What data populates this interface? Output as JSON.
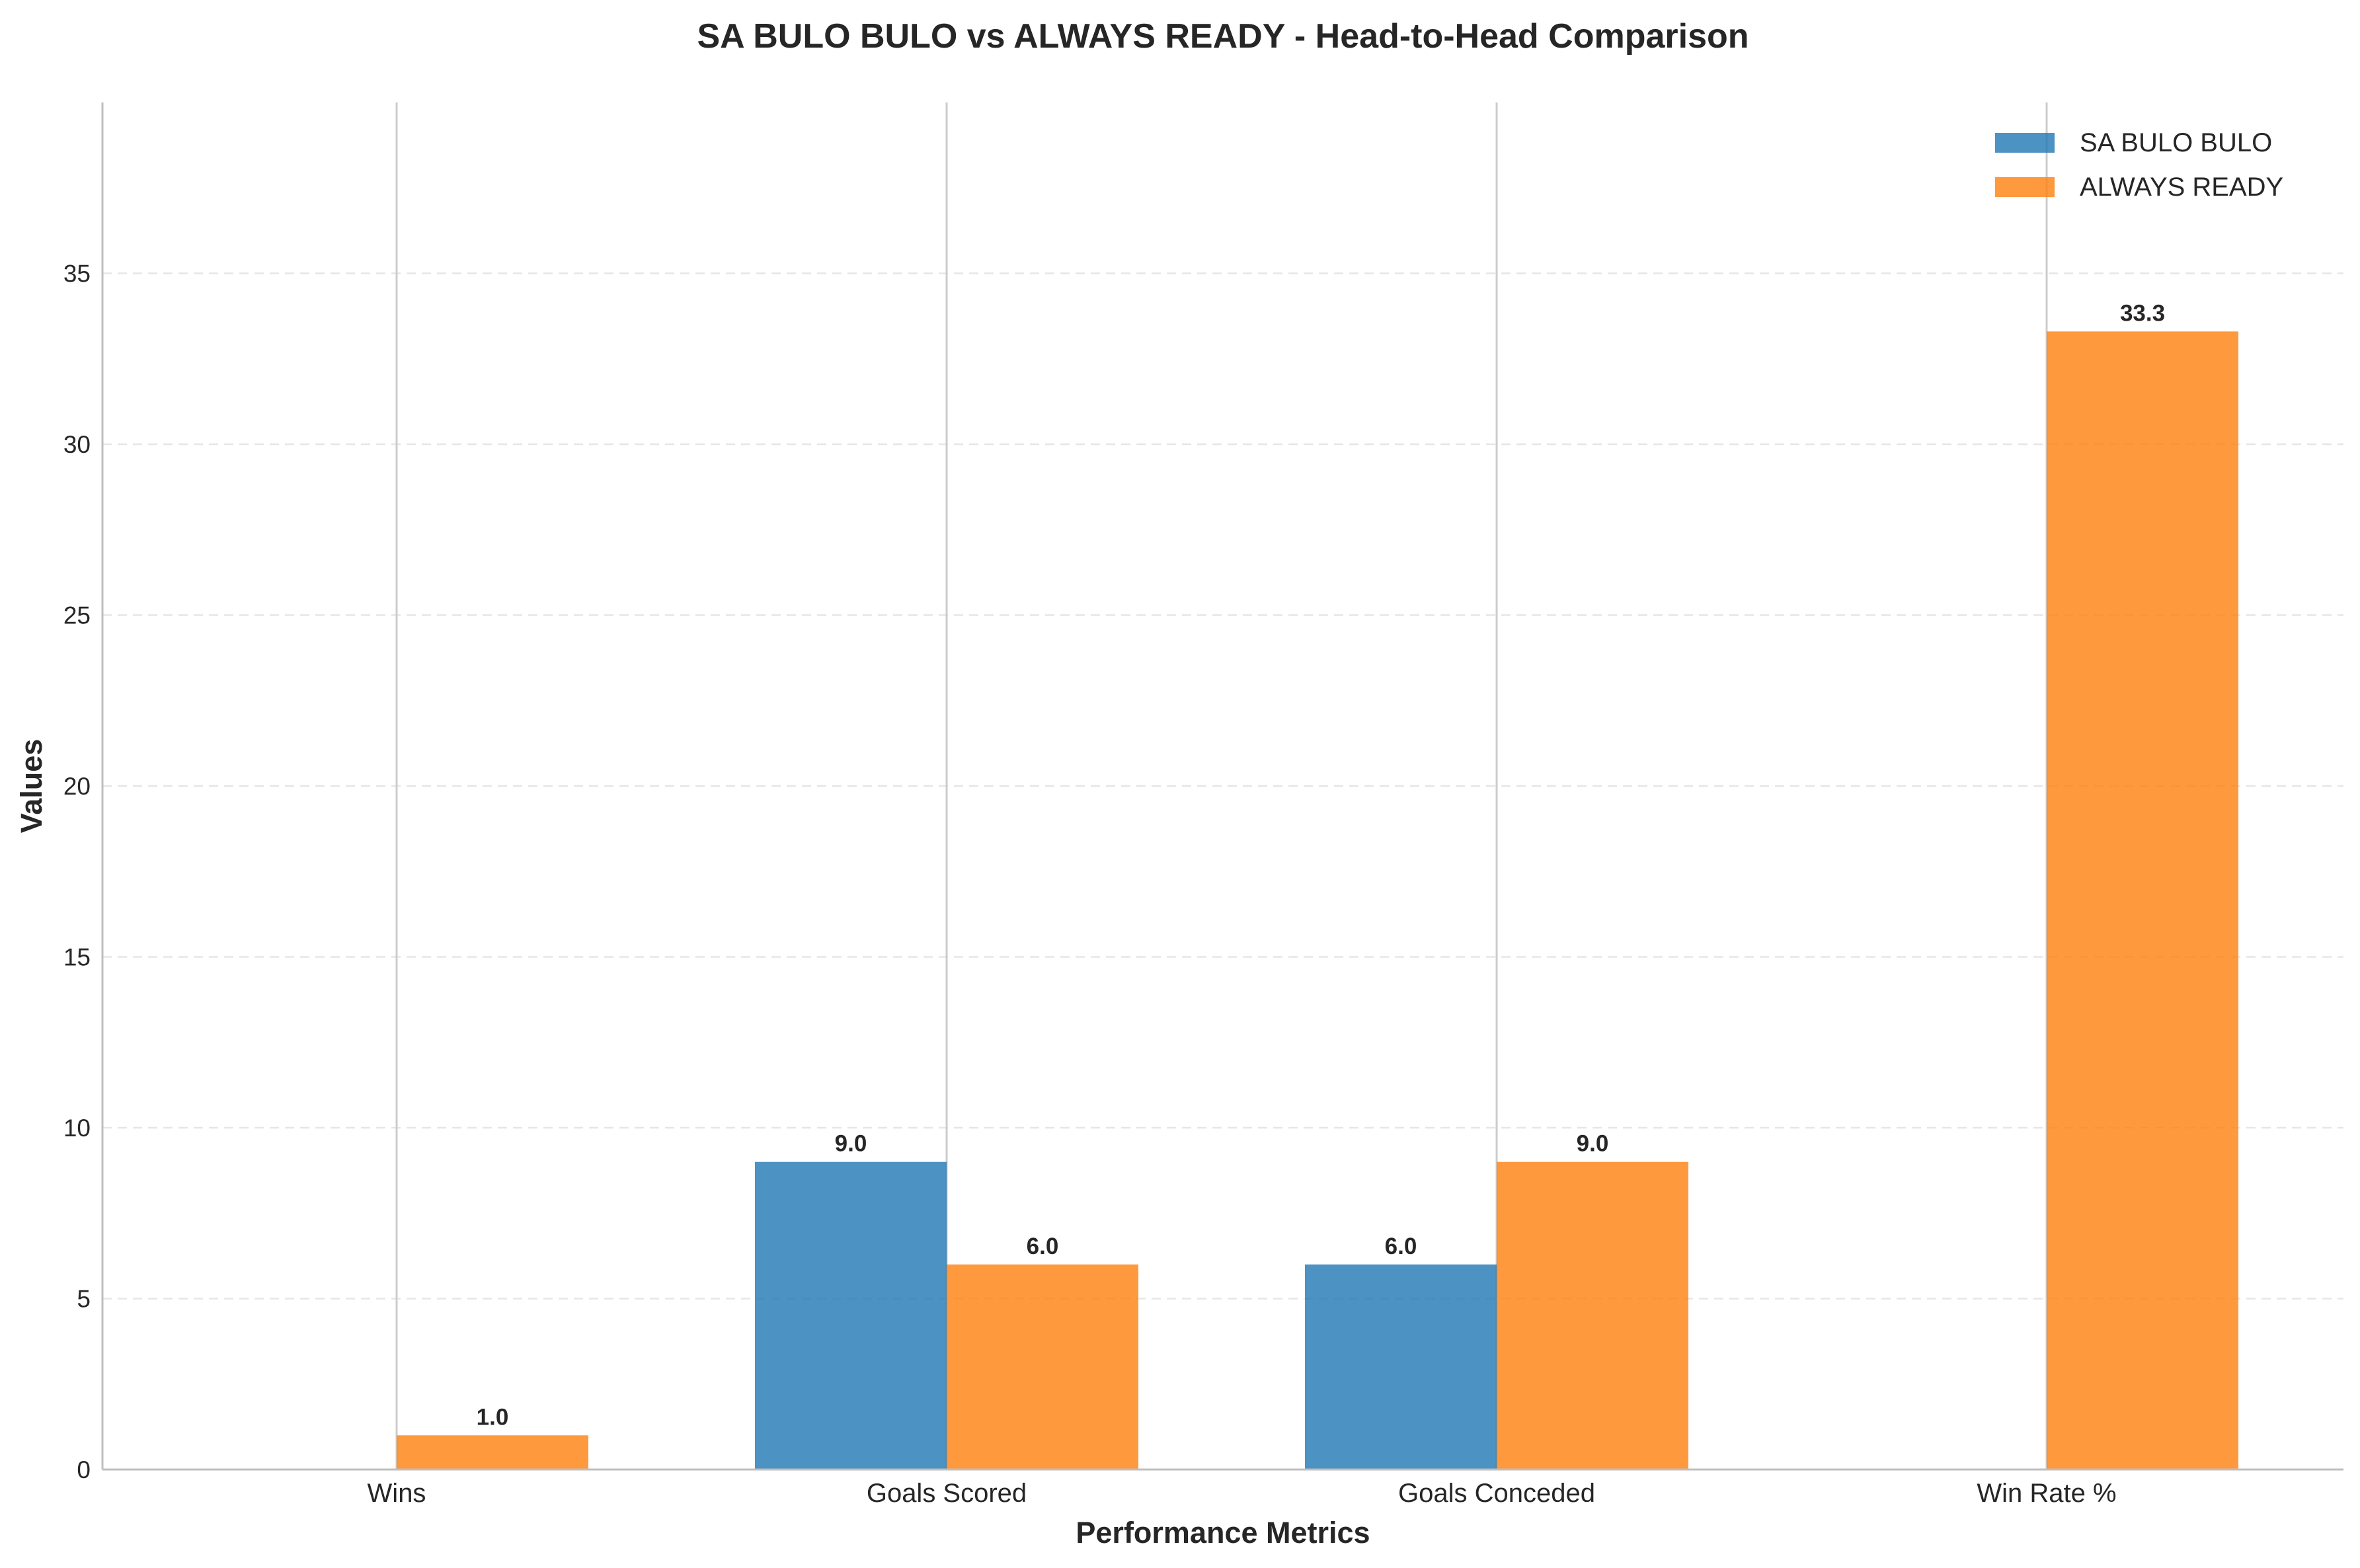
{
  "chart_data": {
    "type": "bar",
    "title": "SA BULO BULO vs ALWAYS READY - Head-to-Head Comparison",
    "xlabel": "Performance Metrics",
    "ylabel": "Values",
    "categories": [
      "Wins",
      "Goals Scored",
      "Goals Conceded",
      "Win Rate %"
    ],
    "series": [
      {
        "name": "SA BULO BULO",
        "color": "#1f77b4",
        "values": [
          0,
          9.0,
          6.0,
          0
        ],
        "labels": [
          "",
          "9.0",
          "6.0",
          ""
        ]
      },
      {
        "name": "ALWAYS READY",
        "color": "#ff7f0e",
        "values": [
          1.0,
          6.0,
          9.0,
          33.3
        ],
        "labels": [
          "1.0",
          "6.0",
          "9.0",
          "33.3"
        ]
      }
    ],
    "ylim": [
      0,
      40
    ],
    "yticks": [
      0,
      5,
      10,
      15,
      20,
      25,
      30,
      35
    ],
    "grid": "y-dashed",
    "legend": "top-right"
  }
}
